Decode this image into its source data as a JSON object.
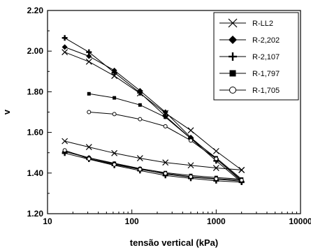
{
  "chart_data": {
    "type": "scatter",
    "title": "",
    "xlabel": "tensão vertical (kPa)",
    "ylabel": "v",
    "x_scale": "log",
    "xlim": [
      10,
      10000
    ],
    "ylim": [
      1.2,
      2.2
    ],
    "x_ticks": [
      10,
      100,
      1000,
      10000
    ],
    "x_tick_labels": [
      "10",
      "100",
      "1000",
      "10000"
    ],
    "y_ticks": [
      1.2,
      1.4,
      1.6,
      1.8,
      2.0,
      2.2
    ],
    "y_tick_labels": [
      "1.20",
      "1.40",
      "1.60",
      "1.80",
      "2.00",
      "2.20"
    ],
    "grid": false,
    "legend_position": "top-right",
    "line_color": "#000000",
    "series": [
      {
        "name": "R-LL2",
        "marker": "x",
        "loading": {
          "x": [
            16,
            31,
            62,
            125,
            250,
            500,
            1000,
            2000
          ],
          "y": [
            1.995,
            1.948,
            1.878,
            1.792,
            1.695,
            1.61,
            1.508,
            1.415
          ]
        },
        "unloading": {
          "x": [
            2000,
            1000,
            500,
            250,
            125,
            62,
            31,
            16
          ],
          "y": [
            1.415,
            1.425,
            1.438,
            1.452,
            1.473,
            1.498,
            1.528,
            1.557
          ]
        }
      },
      {
        "name": "R-2,202",
        "marker": "diamond",
        "loading": {
          "x": [
            16,
            31,
            62,
            125,
            250,
            500,
            1000,
            2000
          ],
          "y": [
            2.02,
            1.975,
            1.905,
            1.805,
            1.7,
            1.575,
            1.47,
            1.36
          ]
        },
        "unloading": {
          "x": [
            2000,
            1000,
            500,
            250,
            125,
            62,
            31,
            16
          ],
          "y": [
            1.36,
            1.37,
            1.38,
            1.395,
            1.42,
            1.445,
            1.475,
            1.505
          ]
        }
      },
      {
        "name": "R-2,107",
        "marker": "plus",
        "loading": {
          "x": [
            16,
            31,
            62,
            125,
            250,
            500,
            1000,
            2000
          ],
          "y": [
            2.065,
            1.995,
            1.895,
            1.795,
            1.68,
            1.57,
            1.46,
            1.355
          ]
        },
        "unloading": {
          "x": [
            2000,
            1000,
            500,
            250,
            125,
            62,
            31,
            16
          ],
          "y": [
            1.355,
            1.362,
            1.374,
            1.388,
            1.412,
            1.438,
            1.468,
            1.498
          ]
        }
      },
      {
        "name": "R-1,797",
        "marker": "square",
        "loading": {
          "x": [
            31,
            62,
            125,
            250,
            500,
            1000,
            2000
          ],
          "y": [
            1.79,
            1.77,
            1.735,
            1.675,
            1.57,
            1.475,
            1.37
          ]
        },
        "unloading": {
          "x": [
            2000,
            1000,
            500,
            250,
            125,
            62,
            31,
            16
          ],
          "y": [
            1.37,
            1.378,
            1.388,
            1.402,
            1.422,
            1.448,
            1.475,
            1.51
          ]
        }
      },
      {
        "name": "R-1,705",
        "marker": "circle",
        "loading": {
          "x": [
            31,
            62,
            125,
            250,
            500,
            1000,
            2000
          ],
          "y": [
            1.7,
            1.69,
            1.665,
            1.63,
            1.56,
            1.47,
            1.365
          ]
        },
        "unloading": {
          "x": [
            2000,
            1000,
            500,
            250,
            125,
            62,
            31,
            16
          ],
          "y": [
            1.365,
            1.372,
            1.382,
            1.398,
            1.418,
            1.442,
            1.47,
            1.512
          ]
        }
      }
    ]
  }
}
